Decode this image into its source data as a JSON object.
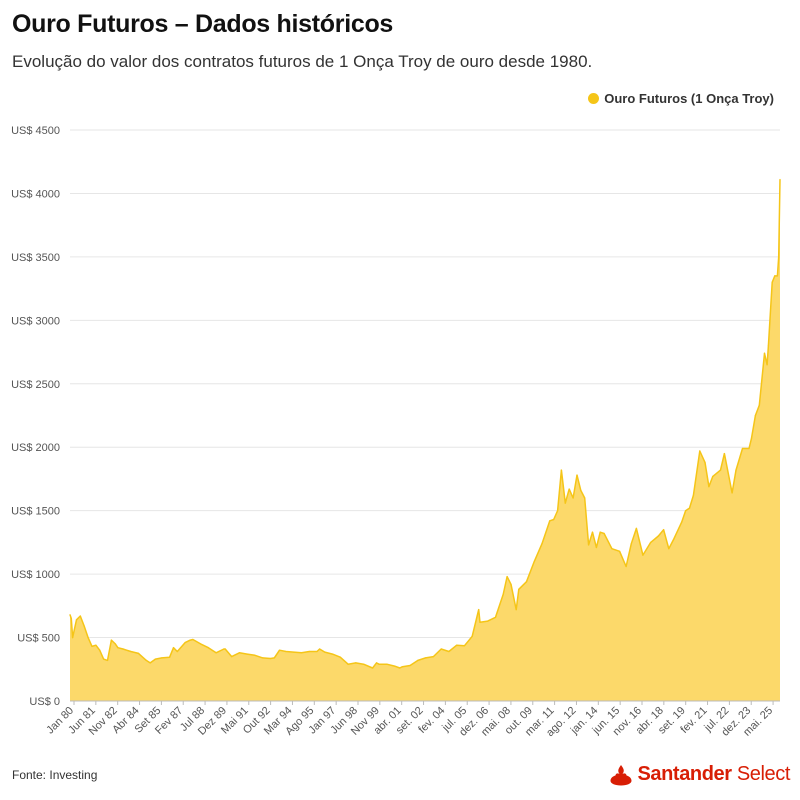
{
  "title": "Ouro Futuros – Dados históricos",
  "subtitle": "Evolução do valor dos contratos futuros de 1 Onça Troy de ouro desde 1980.",
  "legend": {
    "label": "Ouro Futuros (1 Onça Troy)",
    "position": "top-right"
  },
  "source": "Fonte: Investing",
  "brand": {
    "name_bold": "Santander",
    "name_regular": " Select",
    "logo_icon": "santander-flame-icon",
    "color": "#d81e05"
  },
  "colors": {
    "series_line": "#f5c518",
    "series_fill": "#fcd96a",
    "grid": "#e6e6e6"
  },
  "chart_data": {
    "type": "area",
    "title": "Ouro Futuros – Dados históricos",
    "xlabel": "",
    "ylabel": "",
    "ylim": [
      0,
      4500
    ],
    "y_ticks": [
      0,
      500,
      1000,
      1500,
      2000,
      2500,
      3000,
      3500,
      4000,
      4500
    ],
    "y_tick_labels": [
      "US$ 0",
      "US$ 500",
      "US$ 1000",
      "US$ 1500",
      "US$ 2000",
      "US$ 2500",
      "US$ 3000",
      "US$ 3500",
      "US$ 4000",
      "US$ 4500"
    ],
    "x_tick_labels": [
      "Jan 80",
      "Jun 81",
      "Nov 82",
      "Abr 84",
      "Set 85",
      "Fev 87",
      "Jul 88",
      "Dez 89",
      "Mai 91",
      "Out 92",
      "Mar 94",
      "Ago 95",
      "Jan 97",
      "Jun 98",
      "Nov 99",
      "abr. 01",
      "set. 02",
      "fev. 04",
      "jul. 05",
      "dez. 06",
      "mai. 08",
      "out. 09",
      "mar. 11",
      "ago. 12",
      "jan. 14",
      "jun. 15",
      "nov. 16",
      "abr. 18",
      "set. 19",
      "fev. 21",
      "jul. 22",
      "dez. 23",
      "mai. 25"
    ],
    "grid": true,
    "series": [
      {
        "name": "Ouro Futuros (1 Onça Troy)",
        "x": [
          "1980-01",
          "1980-02",
          "1980-03",
          "1980-06",
          "1980-09",
          "1980-12",
          "1981-03",
          "1981-06",
          "1981-09",
          "1981-12",
          "1982-03",
          "1982-06",
          "1982-09",
          "1982-12",
          "1983-02",
          "1983-06",
          "1983-12",
          "1984-06",
          "1984-12",
          "1985-03",
          "1985-07",
          "1985-12",
          "1986-06",
          "1986-09",
          "1986-12",
          "1987-06",
          "1987-10",
          "1987-12",
          "1988-06",
          "1988-12",
          "1989-06",
          "1989-12",
          "1990-01",
          "1990-06",
          "1990-12",
          "1991-06",
          "1991-12",
          "1992-06",
          "1992-12",
          "1993-03",
          "1993-07",
          "1993-12",
          "1994-06",
          "1994-12",
          "1995-06",
          "1995-12",
          "1996-02",
          "1996-06",
          "1996-12",
          "1997-06",
          "1997-12",
          "1998-06",
          "1998-12",
          "1999-07",
          "1999-10",
          "1999-12",
          "2000-06",
          "2000-12",
          "2001-04",
          "2001-06",
          "2001-12",
          "2002-06",
          "2002-12",
          "2003-06",
          "2003-12",
          "2004-06",
          "2004-12",
          "2005-06",
          "2005-12",
          "2006-05",
          "2006-06",
          "2006-12",
          "2007-06",
          "2007-12",
          "2008-03",
          "2008-06",
          "2008-10",
          "2008-12",
          "2009-06",
          "2009-12",
          "2010-06",
          "2010-12",
          "2011-03",
          "2011-06",
          "2011-09",
          "2011-12",
          "2012-03",
          "2012-06",
          "2012-09",
          "2012-12",
          "2013-03",
          "2013-06",
          "2013-09",
          "2013-12",
          "2014-03",
          "2014-06",
          "2014-12",
          "2015-06",
          "2015-11",
          "2016-03",
          "2016-07",
          "2016-12",
          "2017-06",
          "2017-12",
          "2018-04",
          "2018-08",
          "2018-12",
          "2019-06",
          "2019-09",
          "2019-12",
          "2020-03",
          "2020-08",
          "2020-12",
          "2021-03",
          "2021-06",
          "2021-12",
          "2022-03",
          "2022-09",
          "2022-12",
          "2023-05",
          "2023-10",
          "2023-12",
          "2024-03",
          "2024-06",
          "2024-10",
          "2024-12",
          "2025-01",
          "2025-04",
          "2025-06",
          "2025-08",
          "2025-09",
          "2025-10"
        ],
        "values": [
          680,
          650,
          500,
          640,
          670,
          590,
          500,
          430,
          440,
          400,
          330,
          320,
          480,
          450,
          420,
          410,
          390,
          375,
          320,
          300,
          330,
          340,
          345,
          420,
          390,
          460,
          480,
          485,
          450,
          420,
          380,
          410,
          410,
          350,
          380,
          370,
          360,
          340,
          335,
          340,
          400,
          390,
          385,
          380,
          390,
          390,
          410,
          385,
          370,
          345,
          290,
          300,
          290,
          260,
          300,
          290,
          290,
          275,
          260,
          270,
          280,
          320,
          340,
          350,
          410,
          390,
          440,
          435,
          510,
          720,
          620,
          630,
          660,
          840,
          980,
          920,
          720,
          880,
          940,
          1100,
          1240,
          1420,
          1430,
          1500,
          1820,
          1560,
          1670,
          1600,
          1780,
          1660,
          1600,
          1230,
          1330,
          1210,
          1330,
          1320,
          1200,
          1180,
          1060,
          1240,
          1360,
          1150,
          1250,
          1300,
          1350,
          1200,
          1280,
          1410,
          1500,
          1520,
          1620,
          1970,
          1880,
          1690,
          1770,
          1820,
          1950,
          1640,
          1820,
          1990,
          1990,
          2070,
          2250,
          2330,
          2740,
          2650,
          2800,
          3300,
          3350,
          3350,
          3500,
          4110
        ]
      }
    ]
  }
}
